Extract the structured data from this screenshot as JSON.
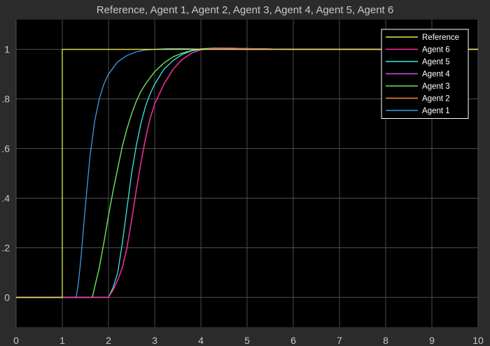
{
  "window": {
    "title": "Reference, Agent 1, Agent 2, Agent 3, Agent 4, Agent 5, Agent 6"
  },
  "colors": {
    "background": "#2b2b2b",
    "plot_background": "#000000",
    "grid": "#4d4d4d",
    "text": "#c8c8c8",
    "legend_border": "#ffffff"
  },
  "chart_data": {
    "type": "line",
    "title": "Reference, Agent 1, Agent 2, Agent 3, Agent 4, Agent 5, Agent 6",
    "xlabel": "",
    "ylabel": "",
    "xlim": [
      0,
      10
    ],
    "ylim": [
      -0.12,
      1.12
    ],
    "x_ticks": [
      0,
      1,
      2,
      3,
      4,
      5,
      6,
      7,
      8,
      9,
      10
    ],
    "x_tick_labels": [
      "0",
      "1",
      "2",
      "3",
      "4",
      "5",
      "6",
      "7",
      "8",
      "9",
      "10"
    ],
    "y_ticks": [
      0,
      0.2,
      0.4,
      0.6,
      0.8,
      1
    ],
    "y_tick_labels": [
      "0",
      ".2",
      ".4",
      ".6",
      ".8",
      "1"
    ],
    "grid": true,
    "legend_position": "top-right",
    "series": [
      {
        "name": "Reference",
        "color": "#e6e64c",
        "x": [
          0,
          1,
          1,
          10
        ],
        "y": [
          0,
          0,
          1,
          1
        ]
      },
      {
        "name": "Agent 6",
        "color": "#ff2d9b",
        "x": [
          0,
          2,
          2.1,
          2.2,
          2.3,
          2.4,
          2.5,
          2.6,
          2.7,
          2.8,
          2.9,
          3.0,
          3.2,
          3.4,
          3.6,
          3.8,
          4.0,
          4.3,
          4.6,
          5.0,
          6.0,
          10
        ],
        "y": [
          0,
          0,
          0.03,
          0.07,
          0.12,
          0.2,
          0.31,
          0.43,
          0.54,
          0.64,
          0.72,
          0.78,
          0.86,
          0.92,
          0.96,
          0.985,
          0.998,
          1.004,
          1.005,
          1.003,
          1.0,
          1.0
        ]
      },
      {
        "name": "Agent 5",
        "color": "#3ce6e6",
        "x": [
          0,
          2,
          2.1,
          2.2,
          2.3,
          2.4,
          2.5,
          2.6,
          2.7,
          2.8,
          2.9,
          3.0,
          3.2,
          3.4,
          3.6,
          3.8,
          4.0,
          4.3,
          4.6,
          5.0,
          6.0,
          10
        ],
        "y": [
          0,
          0,
          0.04,
          0.1,
          0.22,
          0.36,
          0.5,
          0.61,
          0.7,
          0.77,
          0.82,
          0.86,
          0.92,
          0.955,
          0.98,
          0.994,
          1.0,
          1.005,
          1.005,
          1.003,
          1.0,
          1.0
        ]
      },
      {
        "name": "Agent 4",
        "color": "#c85ae6",
        "x": [
          0,
          2,
          2.1,
          2.2,
          2.3,
          2.4,
          2.5,
          2.6,
          2.7,
          2.8,
          2.9,
          3.0,
          3.2,
          3.4,
          3.6,
          3.8,
          4.0,
          4.3,
          4.6,
          5.0,
          6.0,
          10
        ],
        "y": [
          0,
          0,
          0.03,
          0.07,
          0.12,
          0.2,
          0.31,
          0.43,
          0.54,
          0.64,
          0.72,
          0.78,
          0.86,
          0.92,
          0.96,
          0.985,
          0.998,
          1.004,
          1.005,
          1.003,
          1.0,
          1.0
        ]
      },
      {
        "name": "Agent 3",
        "color": "#5ae65a",
        "x": [
          0,
          1.65,
          1.8,
          1.9,
          2.0,
          2.1,
          2.2,
          2.3,
          2.4,
          2.5,
          2.6,
          2.7,
          2.8,
          3.0,
          3.2,
          3.4,
          3.6,
          3.8,
          4.0,
          4.3,
          5.0,
          6.0,
          10
        ],
        "y": [
          0,
          0,
          0.12,
          0.22,
          0.33,
          0.43,
          0.52,
          0.61,
          0.68,
          0.74,
          0.79,
          0.83,
          0.86,
          0.91,
          0.945,
          0.97,
          0.985,
          0.995,
          1.002,
          1.005,
          1.003,
          1.0,
          1.0
        ]
      },
      {
        "name": "Agent 2",
        "color": "#ff8c3c",
        "x": [
          0,
          1.65,
          1.8,
          1.9,
          2.0,
          2.1,
          2.2,
          2.3,
          2.4,
          2.5,
          2.6,
          2.7,
          2.8,
          3.0,
          3.2,
          3.4,
          3.6,
          3.8,
          4.0,
          4.3,
          5.0,
          6.0,
          10
        ],
        "y": [
          0,
          0,
          0.12,
          0.22,
          0.33,
          0.43,
          0.52,
          0.61,
          0.68,
          0.74,
          0.79,
          0.83,
          0.86,
          0.91,
          0.945,
          0.97,
          0.985,
          0.995,
          1.002,
          1.005,
          1.003,
          1.0,
          1.0
        ]
      },
      {
        "name": "Agent 1",
        "color": "#3c9be6",
        "x": [
          0,
          1.3,
          1.35,
          1.4,
          1.5,
          1.6,
          1.7,
          1.8,
          1.9,
          2.0,
          2.2,
          2.4,
          2.6,
          2.8,
          3.0,
          3.3,
          3.6,
          4.0,
          5.0,
          10
        ],
        "y": [
          0,
          0,
          0.06,
          0.15,
          0.37,
          0.57,
          0.71,
          0.8,
          0.86,
          0.9,
          0.95,
          0.975,
          0.99,
          0.997,
          1.0,
          1.003,
          1.003,
          1.001,
          1.0,
          1.0
        ]
      }
    ],
    "legend_order": [
      "Reference",
      "Agent 6",
      "Agent 5",
      "Agent 4",
      "Agent 3",
      "Agent 2",
      "Agent 1"
    ]
  }
}
